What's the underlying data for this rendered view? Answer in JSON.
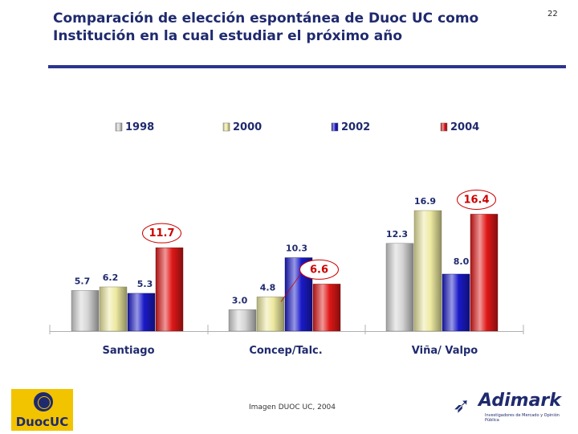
{
  "header": {
    "title_line1": "Comparación de elección espontánea de Duoc UC como",
    "title_line2": "Institución en la cual estudiar el próximo año",
    "page_number": "22"
  },
  "footer": {
    "caption": "Imagen DUOC UC, 2004"
  },
  "logos": {
    "left_text": "DuocUC",
    "right_name": "Adimark",
    "right_tagline": "Investigadores de Mercado y Opinión Pública"
  },
  "colors": {
    "title": "#1f2a6e",
    "rule": "#2a3590",
    "callout": "#cc0000",
    "series": {
      "1998": "#d4d4d4",
      "2000": "#ede9a0",
      "2002": "#1a1ac8",
      "2004": "#e01818"
    }
  },
  "chart_data": {
    "type": "bar",
    "title": "",
    "xlabel": "",
    "ylabel": "",
    "ylim": [
      0,
      17
    ],
    "legend_position": "top",
    "categories": [
      "Santiago",
      "Concep/Talc.",
      "Viña/ Valpo"
    ],
    "series": [
      {
        "name": "1998",
        "values": [
          5.7,
          3.0,
          12.3
        ]
      },
      {
        "name": "2000",
        "values": [
          6.2,
          4.8,
          16.9
        ]
      },
      {
        "name": "2002",
        "values": [
          5.3,
          10.3,
          8.0
        ]
      },
      {
        "name": "2004",
        "values": [
          11.7,
          6.6,
          16.4
        ]
      }
    ],
    "labels": [
      [
        "5.7",
        "3.0",
        "12.3"
      ],
      [
        "6.2",
        "4.8",
        "16.9"
      ],
      [
        "5.3",
        "10.3",
        "8.0"
      ],
      [
        "11.7",
        "6.6",
        "16.4"
      ]
    ],
    "highlighted_series": "2004"
  }
}
